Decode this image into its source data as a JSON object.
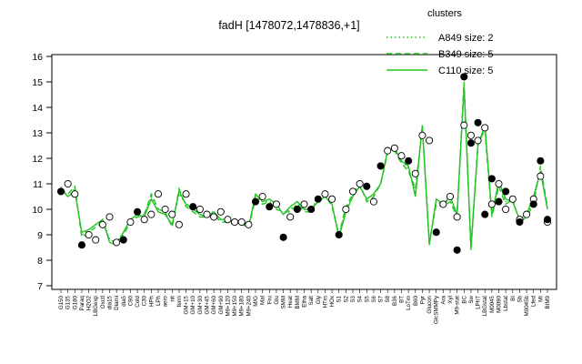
{
  "chart_data": {
    "type": "line",
    "title": "fadH [1478072,1478836,+1]",
    "xlabel": "",
    "ylabel": "",
    "ylim": [
      7,
      16
    ],
    "yticks": [
      7,
      8,
      9,
      10,
      11,
      12,
      13,
      14,
      15,
      16
    ],
    "grid": false,
    "legend_position": "top-right",
    "legend": {
      "title": "clusters",
      "entries": [
        {
          "label": "A849 size: 2",
          "style": "dotted",
          "color": "#22c322"
        },
        {
          "label": "B349 size: 5",
          "style": "dashed",
          "color": "#22c322"
        },
        {
          "label": "C110 size: 5",
          "style": "solid",
          "color": "#22c322"
        }
      ]
    },
    "x_tick_labels": [
      "G150",
      "G135",
      "G180",
      "Paraq",
      "H2O2",
      "LBGexp",
      "Oxctl",
      "dia15",
      "Diami",
      "dia5",
      "C90",
      "Cold",
      "C30",
      "HPh",
      "LPh",
      "aero",
      "nit",
      "ferm",
      "GM+15",
      "GM+10",
      "GM+30",
      "GM+45",
      "GM+60",
      "GM+90",
      "M9+120",
      "M9+150",
      "M9+180",
      "M9+240",
      "M/G",
      "Mal",
      "Fru",
      "Glu",
      "SMM",
      "Heat",
      "BMM",
      "Etha",
      "Salt",
      "Gly",
      "HTm",
      "HOx",
      "S1",
      "S2",
      "S3",
      "S4",
      "S5",
      "S6",
      "S7",
      "S8",
      "B36",
      "BT",
      "LoTm",
      "B60",
      "Pyr",
      "Glucon",
      "GlcSMMPy",
      "Ara",
      "Xyl",
      "M9-stat",
      "BC",
      "Sw",
      "LPhT",
      "LBGstat",
      "M0045",
      "M0090",
      "Lbstat",
      "BI",
      "Sb",
      "M0045b",
      "Lfed",
      "Mt",
      "BIM9"
    ],
    "x_tick_labels_display": [
      "G150",
      "G135",
      "G180",
      "Paraq",
      "H2O2",
      "LBGexp",
      "Oxctl",
      "dia15",
      "Diami",
      "dia5",
      "C90",
      "Cold",
      "C30",
      "HPh",
      "LPh",
      "aero",
      "nit",
      "ferm",
      "GM+15",
      "GM+10",
      "GM+30",
      "GM+45",
      "GM+60",
      "GM+90",
      "M9+120",
      "M9+150",
      "M9+180",
      "M9+240",
      "M/G",
      "Mal",
      "Fru",
      "Glu",
      "SMM",
      "Heat",
      "BMM",
      "Etha",
      "Salt",
      "Gly",
      "HTm",
      "HOx",
      "S1",
      "S2",
      "S3",
      "S4",
      "S5",
      "S6",
      "S7",
      "S8",
      "B36",
      "BT",
      "LoTm",
      "B60",
      "Pyr",
      "Glucon",
      "GlcSMMPy",
      "Ara",
      "Xyl",
      "M9-stat",
      "BC",
      "Sw",
      "LPhT",
      "LBGstat",
      "M0045",
      "M0090",
      "Lbstat",
      "BI",
      "Sb",
      "M0045b",
      "Lfed",
      "Mt",
      "BIM9"
    ],
    "series": [
      {
        "style": "solid",
        "values": [
          10.8,
          10.5,
          10.7,
          9.1,
          9.2,
          9.4,
          9.6,
          8.7,
          8.6,
          9.1,
          9.6,
          9.8,
          9.7,
          10.4,
          9.9,
          9.8,
          9.4,
          10.7,
          10.2,
          10.0,
          9.8,
          9.7,
          9.9,
          9.6,
          9.6,
          9.5,
          9.5,
          9.3,
          10.6,
          10.3,
          10.4,
          10.2,
          9.8,
          10.1,
          10.3,
          10.0,
          10.0,
          10.3,
          10.5,
          10.2,
          8.9,
          9.9,
          10.5,
          10.9,
          10.4,
          10.6,
          11.0,
          12.3,
          12.4,
          11.9,
          11.7,
          10.5,
          13.3,
          8.6,
          10.4,
          10.2,
          10.5,
          9.8,
          14.8,
          8.5,
          12.5,
          13.3,
          9.8,
          11.1,
          10.4,
          10.3,
          9.6,
          9.8,
          10.5,
          11.5,
          10.0
        ]
      },
      {
        "style": "dashed",
        "values": [
          10.8,
          10.6,
          10.9,
          8.9,
          9.1,
          9.3,
          9.5,
          8.8,
          8.7,
          9.0,
          9.5,
          9.7,
          9.8,
          10.6,
          10.0,
          9.9,
          9.3,
          10.8,
          10.1,
          9.9,
          9.7,
          9.7,
          9.8,
          9.5,
          9.5,
          9.4,
          9.4,
          9.3,
          10.4,
          10.2,
          10.3,
          10.0,
          9.9,
          9.9,
          10.2,
          9.9,
          9.9,
          10.5,
          10.6,
          10.1,
          9.0,
          10.1,
          10.6,
          11.0,
          10.3,
          10.5,
          11.0,
          12.2,
          12.3,
          11.8,
          11.5,
          10.8,
          13.2,
          8.7,
          10.2,
          10.1,
          10.3,
          9.7,
          15.0,
          8.4,
          12.6,
          13.1,
          9.7,
          10.9,
          10.2,
          10.4,
          9.5,
          9.7,
          10.2,
          11.7,
          10.1
        ]
      },
      {
        "style": "dotted",
        "values": [
          10.9,
          10.5,
          10.8,
          9.0,
          9.2,
          9.4,
          9.6,
          8.8,
          8.7,
          9.1,
          9.6,
          9.7,
          9.8,
          10.5,
          9.9,
          9.8,
          9.4,
          10.6,
          10.2,
          10.1,
          9.8,
          9.8,
          9.9,
          9.6,
          9.6,
          9.5,
          9.5,
          9.4,
          10.5,
          10.3,
          10.3,
          10.1,
          9.8,
          10.0,
          10.2,
          10.0,
          10.0,
          10.4,
          10.5,
          10.2,
          9.0,
          10.0,
          10.5,
          10.9,
          10.4,
          10.6,
          11.0,
          12.3,
          12.4,
          11.9,
          11.6,
          10.7,
          13.3,
          8.7,
          10.3,
          10.2,
          10.4,
          9.8,
          14.9,
          8.5,
          12.5,
          13.2,
          9.8,
          11.0,
          10.3,
          10.3,
          9.6,
          9.8,
          10.3,
          11.6,
          10.0
        ]
      }
    ],
    "points_open": [
      [
        1,
        11.0
      ],
      [
        2,
        10.6
      ],
      [
        4,
        9.0
      ],
      [
        5,
        8.8
      ],
      [
        6,
        9.4
      ],
      [
        7,
        9.7
      ],
      [
        8,
        8.7
      ],
      [
        10,
        9.5
      ],
      [
        12,
        9.6
      ],
      [
        13,
        9.8
      ],
      [
        14,
        10.6
      ],
      [
        15,
        10.0
      ],
      [
        16,
        9.8
      ],
      [
        17,
        9.4
      ],
      [
        18,
        10.6
      ],
      [
        20,
        10.0
      ],
      [
        21,
        9.8
      ],
      [
        22,
        9.7
      ],
      [
        23,
        9.9
      ],
      [
        24,
        9.6
      ],
      [
        25,
        9.5
      ],
      [
        26,
        9.5
      ],
      [
        27,
        9.4
      ],
      [
        29,
        10.5
      ],
      [
        31,
        10.2
      ],
      [
        33,
        9.7
      ],
      [
        35,
        10.2
      ],
      [
        38,
        10.6
      ],
      [
        39,
        10.4
      ],
      [
        41,
        10.0
      ],
      [
        42,
        10.7
      ],
      [
        43,
        11.0
      ],
      [
        45,
        10.3
      ],
      [
        47,
        12.3
      ],
      [
        48,
        12.4
      ],
      [
        49,
        12.1
      ],
      [
        51,
        11.4
      ],
      [
        52,
        12.9
      ],
      [
        53,
        12.7
      ],
      [
        55,
        10.2
      ],
      [
        56,
        10.5
      ],
      [
        57,
        9.7
      ],
      [
        58,
        13.3
      ],
      [
        59,
        12.9
      ],
      [
        60,
        12.7
      ],
      [
        61,
        13.2
      ],
      [
        62,
        10.2
      ],
      [
        63,
        11.0
      ],
      [
        64,
        10.0
      ],
      [
        65,
        10.4
      ],
      [
        66,
        9.6
      ],
      [
        67,
        9.8
      ],
      [
        68,
        10.4
      ],
      [
        69,
        11.3
      ],
      [
        70,
        9.5
      ]
    ],
    "points_filled": [
      [
        0,
        10.7
      ],
      [
        3,
        8.6
      ],
      [
        9,
        8.8
      ],
      [
        11,
        9.9
      ],
      [
        19,
        10.1
      ],
      [
        28,
        10.3
      ],
      [
        30,
        10.1
      ],
      [
        32,
        8.9
      ],
      [
        34,
        10.0
      ],
      [
        36,
        10.0
      ],
      [
        37,
        10.4
      ],
      [
        40,
        9.0
      ],
      [
        44,
        10.9
      ],
      [
        46,
        11.7
      ],
      [
        50,
        11.9
      ],
      [
        54,
        9.1
      ],
      [
        57,
        8.4
      ],
      [
        58,
        15.2
      ],
      [
        59,
        12.6
      ],
      [
        60,
        13.4
      ],
      [
        61,
        9.8
      ],
      [
        62,
        11.2
      ],
      [
        63,
        10.3
      ],
      [
        64,
        10.7
      ],
      [
        66,
        9.5
      ],
      [
        68,
        10.2
      ],
      [
        69,
        11.9
      ],
      [
        70,
        9.6
      ]
    ]
  }
}
